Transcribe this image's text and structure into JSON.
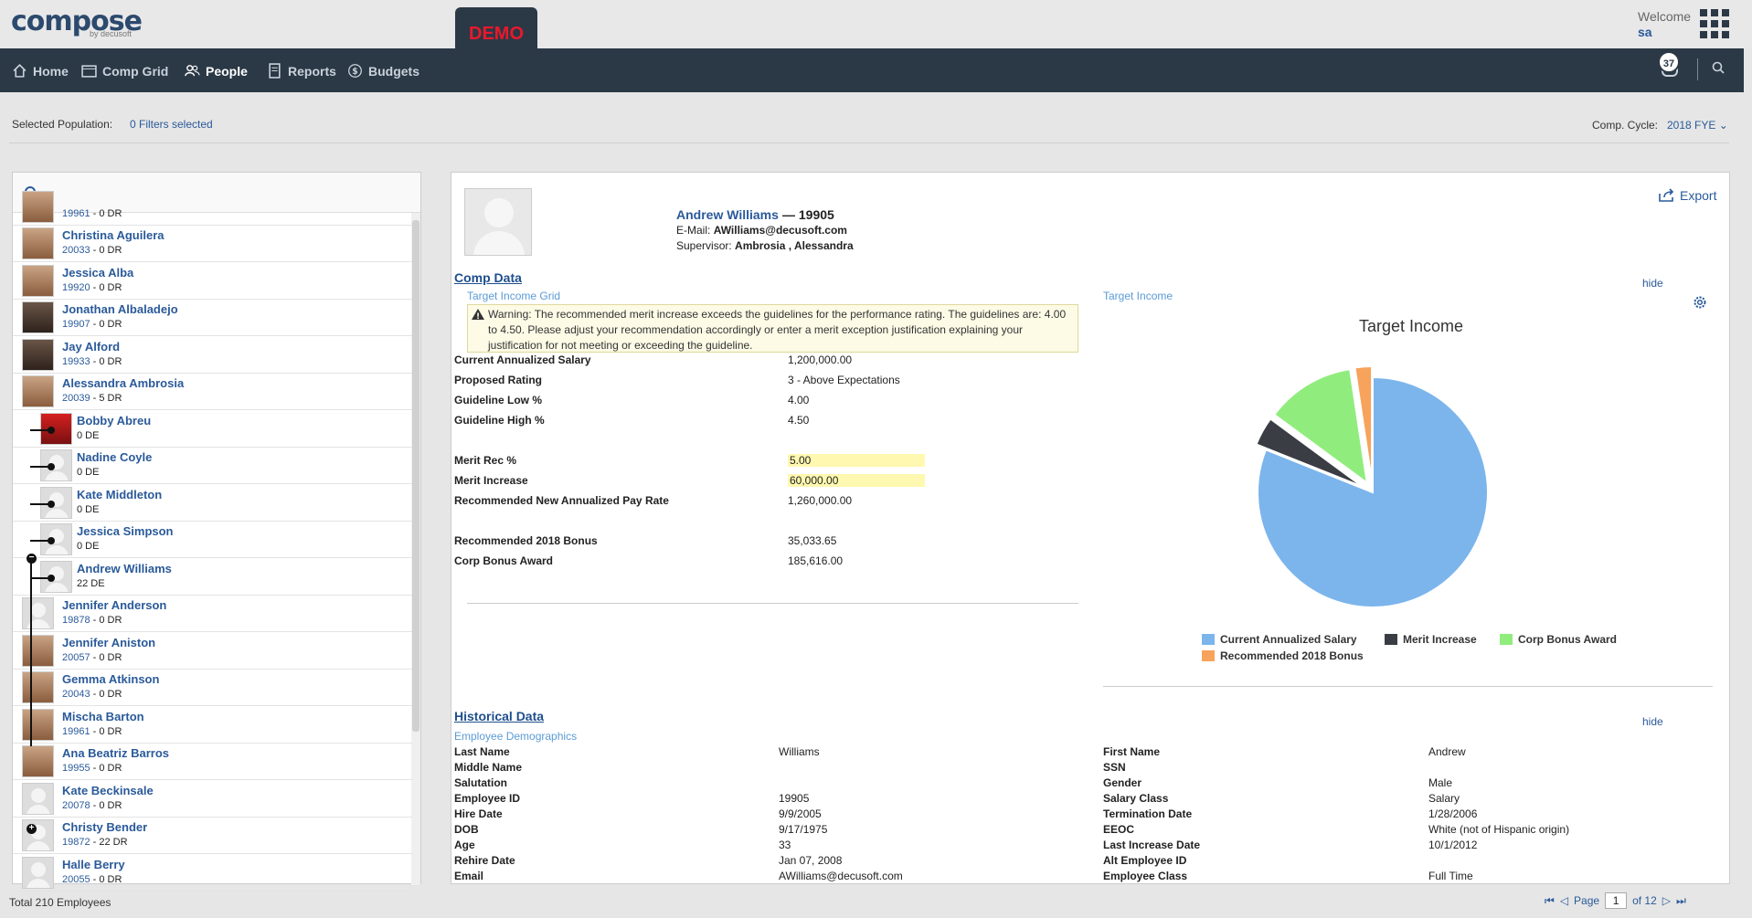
{
  "app": {
    "logo": "compose",
    "logo_sub": "by decusoft",
    "demo_label": "DEMO",
    "welcome": "Welcome",
    "username": "sa",
    "notifications": "37"
  },
  "nav": {
    "home": "Home",
    "comp_grid": "Comp Grid",
    "people": "People",
    "reports": "Reports",
    "budgets": "Budgets"
  },
  "filters": {
    "label": "Selected Population:",
    "value": "0 Filters selected",
    "cycle_label": "Comp. Cycle:",
    "cycle_value": "2018 FYE"
  },
  "employees": [
    {
      "name": "",
      "id": "19961",
      "dr": " - 0 DR"
    },
    {
      "name": "Christina Aguilera",
      "id": "20033",
      "dr": " - 0 DR"
    },
    {
      "name": "Jessica Alba",
      "id": "19920",
      "dr": " - 0 DR"
    },
    {
      "name": "Jonathan Albaladejo",
      "id": "19907",
      "dr": " - 0 DR"
    },
    {
      "name": "Jay Alford",
      "id": "19933",
      "dr": " - 0 DR"
    },
    {
      "name": "Alessandra Ambrosia",
      "id": "20039",
      "dr": " - 5 DR"
    },
    {
      "name": "Bobby Abreu",
      "id": "",
      "dr": "0 DE"
    },
    {
      "name": "Nadine Coyle",
      "id": "",
      "dr": "0 DE"
    },
    {
      "name": "Kate Middleton",
      "id": "",
      "dr": "0 DE"
    },
    {
      "name": "Jessica Simpson",
      "id": "",
      "dr": "0 DE"
    },
    {
      "name": "Andrew Williams",
      "id": "",
      "dr": "22 DE"
    },
    {
      "name": "Jennifer Anderson",
      "id": "19878",
      "dr": " - 0 DR"
    },
    {
      "name": "Jennifer Aniston",
      "id": "20057",
      "dr": " - 0 DR"
    },
    {
      "name": "Gemma Atkinson",
      "id": "20043",
      "dr": " - 0 DR"
    },
    {
      "name": "Mischa Barton",
      "id": "19961",
      "dr": " - 0 DR"
    },
    {
      "name": "Ana Beatriz Barros",
      "id": "19955",
      "dr": " - 0 DR"
    },
    {
      "name": "Kate Beckinsale",
      "id": "20078",
      "dr": " - 0 DR"
    },
    {
      "name": "Christy Bender",
      "id": "19872",
      "dr": " - 22 DR"
    },
    {
      "name": "Halle Berry",
      "id": "20055",
      "dr": " - 0 DR"
    }
  ],
  "footer": {
    "total": "Total 210 Employees",
    "page_label": "Page",
    "page": "1",
    "of": "of 12"
  },
  "profile": {
    "name": "Andrew Williams",
    "id": "— 19905",
    "email_label": "E-Mail:",
    "email": "AWilliams@decusoft.com",
    "supervisor_label": "Supervisor:",
    "supervisor": "Ambrosia , Alessandra",
    "export": "Export"
  },
  "comp": {
    "title": "Comp Data",
    "hide": "hide",
    "grid_label": "Target Income Grid",
    "chart_label": "Target Income",
    "warning": "Warning: The recommended merit increase exceeds the guidelines for the performance rating. The guidelines are: 4.00 to 4.50. Please adjust your recommendation accordingly or enter a merit exception justification explaining your justification for not meeting or exceeding the guideline.",
    "rows": [
      {
        "label": "Current Annualized Salary",
        "value": "1,200,000.00"
      },
      {
        "label": "Proposed Rating",
        "value": "3 - Above Expectations"
      },
      {
        "label": "Guideline Low %",
        "value": "4.00"
      },
      {
        "label": "Guideline High %",
        "value": "4.50"
      },
      {
        "label": "Merit Rec %",
        "value": "5.00"
      },
      {
        "label": "Merit Increase",
        "value": "60,000.00"
      },
      {
        "label": "Recommended New Annualized Pay Rate",
        "value": "1,260,000.00"
      },
      {
        "label": "Recommended 2018 Bonus",
        "value": "35,033.65"
      },
      {
        "label": "Corp Bonus Award",
        "value": "185,616.00"
      }
    ]
  },
  "chart_data": {
    "type": "pie",
    "title": "Target Income",
    "categories": [
      "Current Annualized Salary",
      "Merit Increase",
      "Corp Bonus Award",
      "Recommended 2018 Bonus"
    ],
    "values": [
      1200000,
      60000,
      185616,
      35033.65
    ],
    "colors": [
      "#7cb5ec",
      "#3a3d43",
      "#90ed7d",
      "#f7a35c"
    ],
    "legend": "bottom"
  },
  "hist": {
    "title": "Historical Data",
    "hide": "hide",
    "sub": "Employee Demographics",
    "left": [
      {
        "label": "Last Name",
        "value": "Williams"
      },
      {
        "label": "Middle Name",
        "value": ""
      },
      {
        "label": "Salutation",
        "value": ""
      },
      {
        "label": "Employee ID",
        "value": "19905"
      },
      {
        "label": "Hire Date",
        "value": "9/9/2005"
      },
      {
        "label": "DOB",
        "value": "9/17/1975"
      },
      {
        "label": "Age",
        "value": "33"
      },
      {
        "label": "Rehire Date",
        "value": "Jan 07, 2008"
      },
      {
        "label": "Email",
        "value": "AWilliams@decusoft.com"
      }
    ],
    "right": [
      {
        "label": "First Name",
        "value": "Andrew"
      },
      {
        "label": "SSN",
        "value": ""
      },
      {
        "label": "Gender",
        "value": "Male"
      },
      {
        "label": "Salary Class",
        "value": "Salary"
      },
      {
        "label": "Termination Date",
        "value": "1/28/2006"
      },
      {
        "label": "EEOC",
        "value": "White (not of Hispanic origin)"
      },
      {
        "label": "Last Increase Date",
        "value": "10/1/2012"
      },
      {
        "label": "Alt Employee ID",
        "value": ""
      },
      {
        "label": "Employee Class",
        "value": "Full Time"
      }
    ]
  }
}
